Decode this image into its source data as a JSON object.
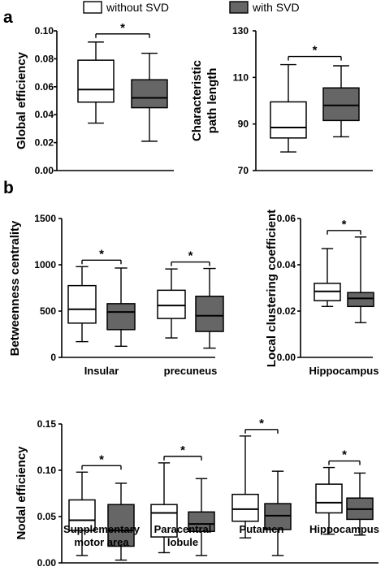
{
  "legend": {
    "without_label": "without SVD",
    "with_label": "with SVD",
    "without_color": "#ffffff",
    "with_color": "#666666"
  },
  "panel_labels": [
    "a",
    "b"
  ],
  "sig_marker": "*",
  "chart_data": [
    {
      "id": "global-efficiency",
      "type": "box",
      "ylabel": "Global efficiency",
      "ylim": [
        0,
        0.1
      ],
      "yticks": [
        0,
        0.02,
        0.04,
        0.06,
        0.08,
        0.1
      ],
      "ytick_labels": [
        "0.00",
        "0.02",
        "0.04",
        "0.06",
        "0.08",
        "0.10"
      ],
      "groups": [
        {
          "category": "",
          "without": {
            "min": 0.034,
            "q1": 0.049,
            "median": 0.058,
            "q3": 0.079,
            "max": 0.092
          },
          "with": {
            "min": 0.021,
            "q1": 0.045,
            "median": 0.052,
            "q3": 0.065,
            "max": 0.084
          },
          "sig": "*"
        }
      ]
    },
    {
      "id": "characteristic-path-length",
      "type": "box",
      "ylabel": [
        "Characteristic",
        "path length"
      ],
      "ylim": [
        70,
        130
      ],
      "yticks": [
        70,
        90,
        110,
        130
      ],
      "ytick_labels": [
        "70",
        "90",
        "110",
        "130"
      ],
      "groups": [
        {
          "category": "",
          "without": {
            "min": 78,
            "q1": 84,
            "median": 88.5,
            "q3": 99.5,
            "max": 115.5
          },
          "with": {
            "min": 84.5,
            "q1": 91.5,
            "median": 98,
            "q3": 105.5,
            "max": 115
          },
          "sig": "*"
        }
      ]
    },
    {
      "id": "betweenness-centrality",
      "type": "box",
      "ylabel": "Betweenness centrality",
      "ylim": [
        0,
        1500
      ],
      "yticks": [
        0,
        500,
        1000,
        1500
      ],
      "ytick_labels": [
        "0",
        "500",
        "1000",
        "1500"
      ],
      "groups": [
        {
          "category": "Insular",
          "without": {
            "min": 170,
            "q1": 370,
            "median": 520,
            "q3": 775,
            "max": 980
          },
          "with": {
            "min": 120,
            "q1": 300,
            "median": 490,
            "q3": 580,
            "max": 965
          },
          "sig": "*"
        },
        {
          "category": "precuneus",
          "without": {
            "min": 210,
            "q1": 420,
            "median": 560,
            "q3": 725,
            "max": 955
          },
          "with": {
            "min": 100,
            "q1": 280,
            "median": 450,
            "q3": 660,
            "max": 960
          },
          "sig": "*"
        }
      ]
    },
    {
      "id": "local-clustering-coefficient",
      "type": "box",
      "ylabel": "Local clustering coefficient",
      "ylim": [
        0,
        0.06
      ],
      "yticks": [
        0,
        0.02,
        0.04,
        0.06
      ],
      "ytick_labels": [
        "0.00",
        "0.02",
        "0.04",
        "0.06"
      ],
      "groups": [
        {
          "category": "Hippocampus",
          "without": {
            "min": 0.022,
            "q1": 0.0245,
            "median": 0.0285,
            "q3": 0.032,
            "max": 0.047
          },
          "with": {
            "min": 0.015,
            "q1": 0.022,
            "median": 0.0255,
            "q3": 0.028,
            "max": 0.052
          },
          "sig": "*"
        }
      ]
    },
    {
      "id": "nodal-efficiency",
      "type": "box",
      "ylabel": "Nodal efficiency",
      "ylim": [
        0,
        0.15
      ],
      "yticks": [
        0,
        0.05,
        0.1,
        0.15
      ],
      "ytick_labels": [
        "0.00",
        "0.05",
        "0.10",
        "0.15"
      ],
      "groups": [
        {
          "category": [
            "Supplementary",
            "motor area"
          ],
          "without": {
            "min": 0.008,
            "q1": 0.035,
            "median": 0.046,
            "q3": 0.068,
            "max": 0.098
          },
          "with": {
            "min": 0.003,
            "q1": 0.018,
            "median": 0.035,
            "q3": 0.063,
            "max": 0.086
          },
          "sig": "*"
        },
        {
          "category": [
            "Paracentral",
            "lobule"
          ],
          "without": {
            "min": 0.011,
            "q1": 0.028,
            "median": 0.054,
            "q3": 0.063,
            "max": 0.108
          },
          "with": {
            "min": 0.008,
            "q1": 0.034,
            "median": 0.042,
            "q3": 0.055,
            "max": 0.091
          },
          "sig": "*"
        },
        {
          "category": "Putamen",
          "without": {
            "min": 0.027,
            "q1": 0.045,
            "median": 0.058,
            "q3": 0.074,
            "max": 0.137
          },
          "with": {
            "min": 0.008,
            "q1": 0.036,
            "median": 0.051,
            "q3": 0.064,
            "max": 0.099
          },
          "sig": "*"
        },
        {
          "category": "Hippocampus",
          "without": {
            "min": 0.031,
            "q1": 0.054,
            "median": 0.065,
            "q3": 0.085,
            "max": 0.103
          },
          "with": {
            "min": 0.03,
            "q1": 0.047,
            "median": 0.058,
            "q3": 0.07,
            "max": 0.097
          },
          "sig": "*"
        }
      ]
    }
  ]
}
